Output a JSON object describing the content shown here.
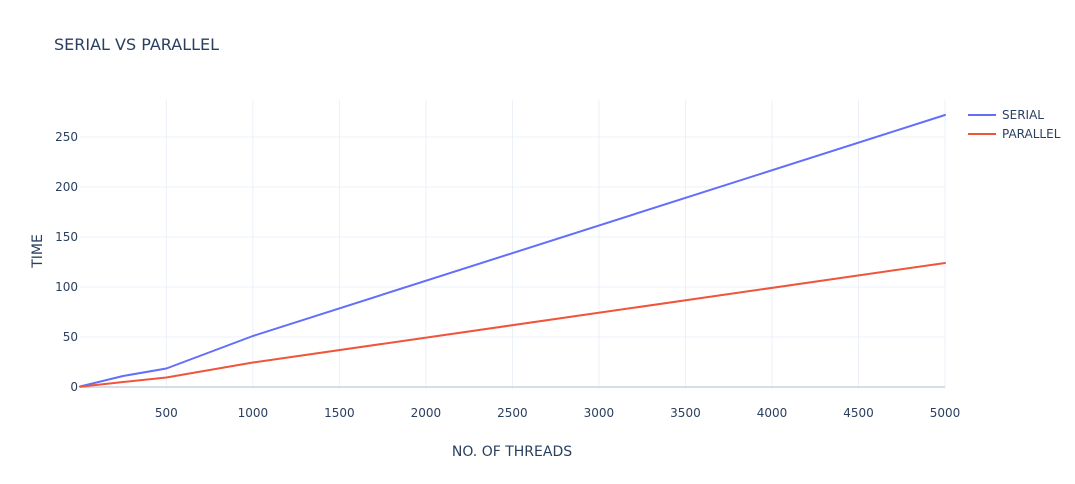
{
  "chart_data": {
    "type": "line",
    "title": "SERIAL VS PARALLEL",
    "xlabel": "NO. OF THREADS",
    "ylabel": "TIME",
    "xlim": [
      1,
      5000
    ],
    "ylim": [
      -2,
      287
    ],
    "x_ticks": [
      500,
      1000,
      1500,
      2000,
      2500,
      3000,
      3500,
      4000,
      4500,
      5000
    ],
    "y_ticks": [
      0,
      50,
      100,
      150,
      200,
      250
    ],
    "grid": true,
    "legend_position": "top-right",
    "series": [
      {
        "name": "SERIAL",
        "color": "#636efa",
        "x": [
          1,
          250,
          500,
          1000,
          5000
        ],
        "y": [
          0.5,
          11,
          18.5,
          51,
          272
        ]
      },
      {
        "name": "PARALLEL",
        "color": "#ef553b",
        "x": [
          1,
          250,
          500,
          1000,
          5000
        ],
        "y": [
          0.3,
          5,
          9.5,
          24.5,
          124
        ]
      }
    ]
  }
}
